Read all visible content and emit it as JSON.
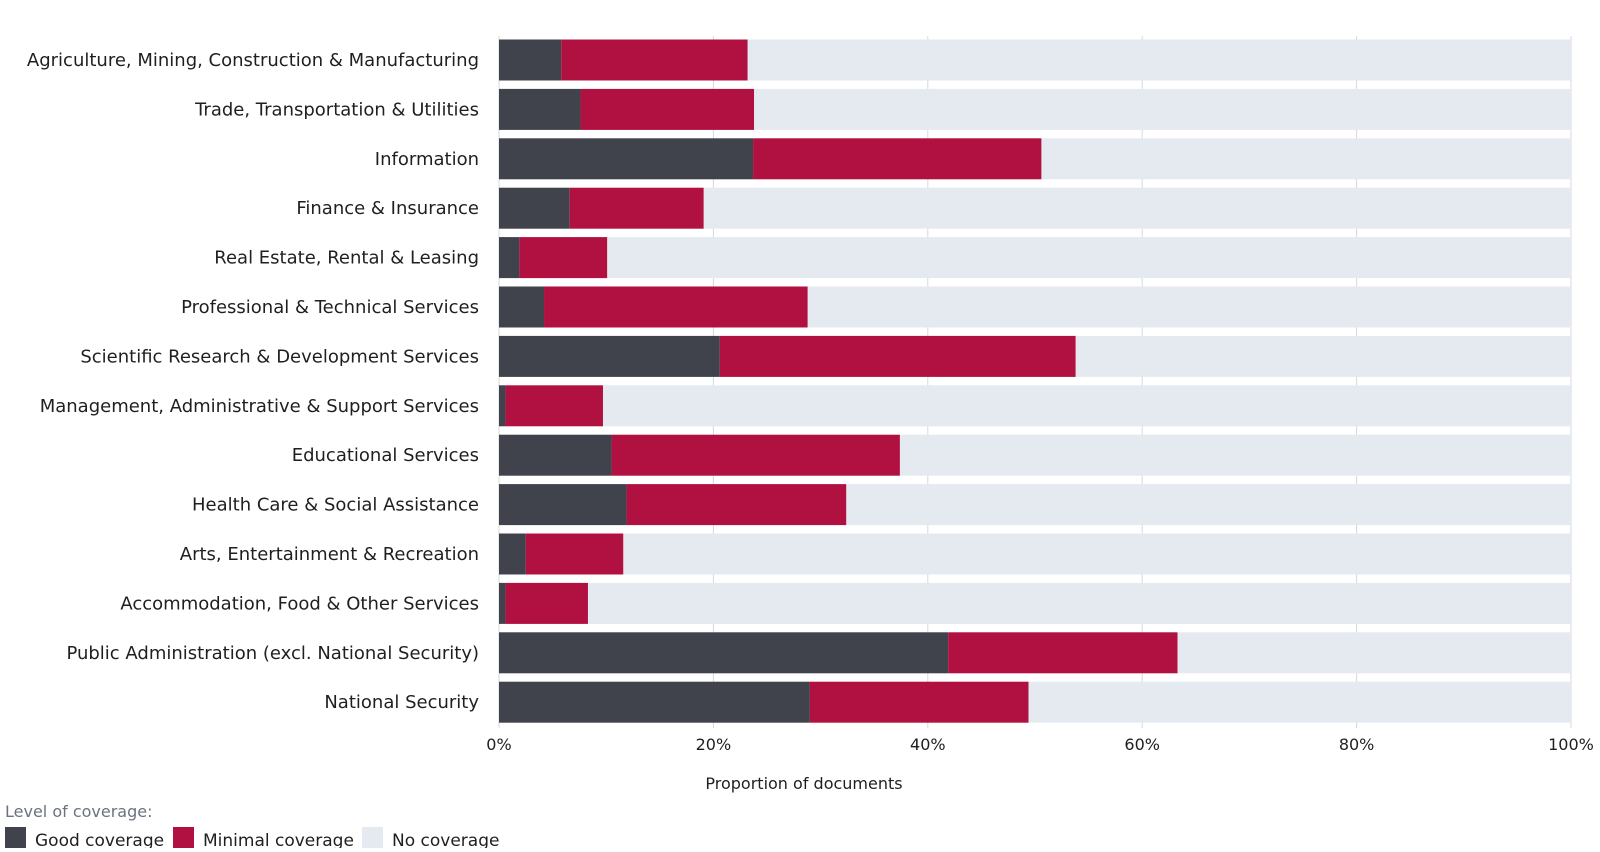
{
  "chart_data": {
    "type": "bar",
    "orientation": "horizontal",
    "stacked": true,
    "categories": [
      "Agriculture, Mining, Construction & Manufacturing",
      "Trade, Transportation & Utilities",
      "Information",
      "Finance & Insurance",
      "Real Estate, Rental & Leasing",
      "Professional & Technical Services",
      "Scientific Research & Development Services",
      "Management, Administrative & Support Services",
      "Educational Services",
      "Health Care & Social Assistance",
      "Arts, Entertainment & Recreation",
      "Accommodation, Food & Other Services",
      "Public Administration (excl. National Security)",
      "National Security"
    ],
    "series": [
      {
        "name": "Good coverage",
        "color": "#40434b",
        "values": [
          5.8,
          7.6,
          23.7,
          6.6,
          1.9,
          4.2,
          20.6,
          0.6,
          10.5,
          11.9,
          2.5,
          0.6,
          41.9,
          29.0
        ]
      },
      {
        "name": "Minimal coverage",
        "color": "#b01140",
        "values": [
          17.4,
          16.2,
          26.9,
          12.5,
          8.2,
          24.6,
          33.2,
          9.1,
          26.9,
          20.5,
          9.1,
          7.7,
          21.4,
          20.4
        ]
      },
      {
        "name": "No coverage",
        "color": "#e5e9f0",
        "values": [
          76.8,
          76.2,
          49.4,
          80.9,
          89.9,
          71.2,
          46.2,
          90.3,
          62.6,
          67.6,
          88.4,
          91.7,
          36.7,
          50.6
        ]
      }
    ],
    "xlabel": "Proportion of documents",
    "ylabel": "",
    "xlim": [
      0,
      100
    ],
    "x_ticks": [
      {
        "value": 0,
        "label": "0%"
      },
      {
        "value": 20,
        "label": "20%"
      },
      {
        "value": 40,
        "label": "40%"
      },
      {
        "value": 60,
        "label": "60%"
      },
      {
        "value": 80,
        "label": "80%"
      },
      {
        "value": 100,
        "label": "100%"
      }
    ],
    "grid": true,
    "legend": {
      "title": "Level of coverage:",
      "placement": "bottom-left"
    }
  }
}
